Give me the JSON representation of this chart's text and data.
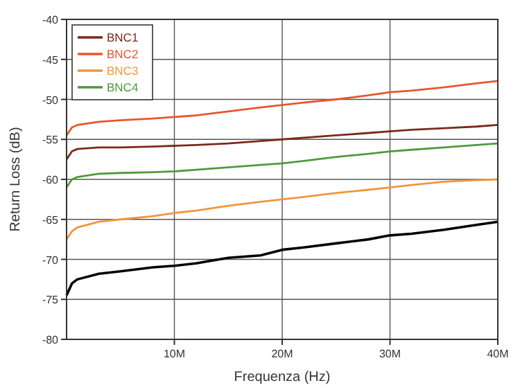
{
  "chart_data": {
    "type": "line",
    "xlabel": "Frequenza (Hz)",
    "ylabel": "Return Loss (dB)",
    "xlim": [
      0,
      40000000
    ],
    "xticks": [
      {
        "value": 10000000,
        "label": "10M"
      },
      {
        "value": 20000000,
        "label": "20M"
      },
      {
        "value": 30000000,
        "label": "30M"
      },
      {
        "value": 40000000,
        "label": "40M"
      }
    ],
    "ylim": [
      -80,
      -40
    ],
    "yticks": [
      -80,
      -75,
      -70,
      -65,
      -60,
      -55,
      -50,
      -45,
      -40
    ],
    "grid": true,
    "legend": "top left",
    "line_style": "solid",
    "x": [
      0,
      500000,
      1000000,
      3000000,
      5000000,
      8000000,
      10000000,
      12000000,
      15000000,
      18000000,
      20000000,
      22000000,
      25000000,
      28000000,
      30000000,
      32000000,
      35000000,
      38000000,
      40000000
    ],
    "series": [
      {
        "color": "#000000",
        "values": [
          -74.5,
          -73,
          -72.5,
          -71.8,
          -71.5,
          -71,
          -70.8,
          -70.5,
          -69.8,
          -69.5,
          -68.8,
          -68.5,
          -68,
          -67.5,
          -67,
          -66.8,
          -66.3,
          -65.7,
          -65.3
        ]
      },
      {
        "name": "BNC1",
        "color": "#7a2a1a",
        "values": [
          -57.5,
          -56.5,
          -56.2,
          -56,
          -56,
          -55.9,
          -55.8,
          -55.7,
          -55.5,
          -55.2,
          -55,
          -54.8,
          -54.5,
          -54.2,
          -54,
          -53.8,
          -53.6,
          -53.4,
          -53.2
        ]
      },
      {
        "name": "BNC2",
        "color": "#e8562a",
        "values": [
          -54.5,
          -53.5,
          -53.2,
          -52.8,
          -52.6,
          -52.4,
          -52.2,
          -52,
          -51.5,
          -51,
          -50.7,
          -50.4,
          -50,
          -49.5,
          -49.1,
          -48.9,
          -48.5,
          -48,
          -47.7
        ]
      },
      {
        "name": "BNC3",
        "color": "#f0963c",
        "values": [
          -67.5,
          -66.5,
          -66,
          -65.3,
          -65,
          -64.6,
          -64.2,
          -63.9,
          -63.3,
          -62.8,
          -62.5,
          -62.2,
          -61.7,
          -61.3,
          -61,
          -60.7,
          -60.3,
          -60.1,
          -60
        ]
      },
      {
        "name": "BNC4",
        "color": "#4f9a3c",
        "values": [
          -61,
          -60,
          -59.7,
          -59.3,
          -59.2,
          -59.1,
          -59,
          -58.8,
          -58.5,
          -58.2,
          -58,
          -57.7,
          -57.2,
          -56.8,
          -56.5,
          -56.3,
          -56,
          -55.7,
          -55.5
        ]
      }
    ]
  }
}
